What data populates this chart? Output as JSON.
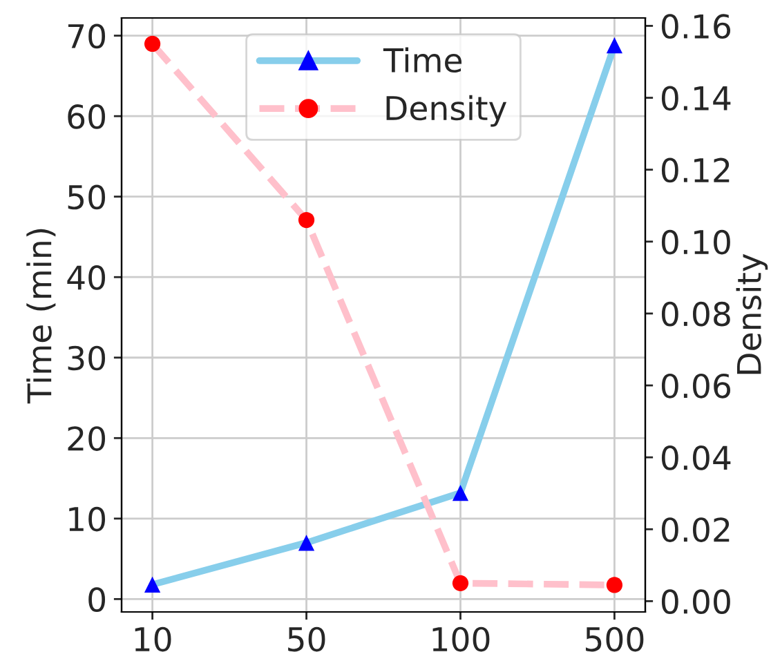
{
  "chart_data": {
    "type": "line",
    "ylabel": "Time (min)",
    "y2label": "Density",
    "categories": [
      "10",
      "50",
      "100",
      "500"
    ],
    "series": [
      {
        "name": "Time",
        "color": "#87ceeb",
        "colors": [
          "#0000ff",
          "#0000ff",
          "#0000ff",
          "#0000ff"
        ],
        "values": [
          1.8,
          7.0,
          13.2,
          68.8
        ],
        "marker": "triangle",
        "line_style": "solid"
      },
      {
        "name": "Density",
        "color": "#ffc0cb",
        "colors": [
          "#ff0000",
          "#ff0000",
          "#ff0000",
          "#ff0000"
        ],
        "values": [
          0.155,
          0.106,
          0.005,
          0.0045
        ],
        "marker": "circle",
        "line_style": "dashed",
        "axis": "y2"
      }
    ],
    "ylim": [
      -1.6,
      72.2
    ],
    "yticks": [
      0,
      10,
      20,
      30,
      40,
      50,
      60,
      70
    ],
    "y2lim": [
      -0.003,
      0.1622
    ],
    "y2ticks": [
      {
        "value": 0,
        "label": "0.00"
      },
      {
        "value": 0.02,
        "label": "0.02"
      },
      {
        "value": 0.04,
        "label": "0.04"
      },
      {
        "value": 0.06,
        "label": "0.06"
      },
      {
        "value": 0.08,
        "label": "0.08"
      },
      {
        "value": 0.1,
        "label": "0.10"
      },
      {
        "value": 0.12,
        "label": "0.12"
      },
      {
        "value": 0.14,
        "label": "0.14"
      },
      {
        "value": 0.16,
        "label": "0.16"
      }
    ],
    "grid": true,
    "legend": "top center"
  }
}
